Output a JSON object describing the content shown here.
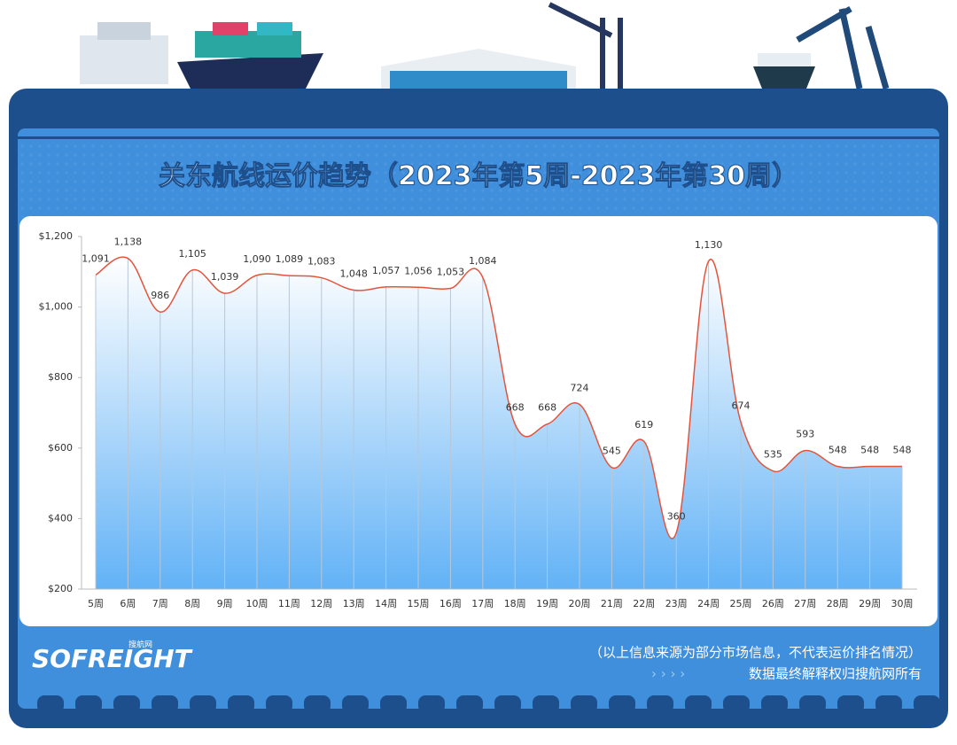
{
  "chart_data": {
    "type": "line",
    "title": "关东航线运价趋势（2023年第5周-2023年第30周）",
    "categories": [
      "5周",
      "6周",
      "7周",
      "8周",
      "9周",
      "10周",
      "11周",
      "12周",
      "13周",
      "14周",
      "15周",
      "16周",
      "17周",
      "18周",
      "19周",
      "20周",
      "21周",
      "22周",
      "23周",
      "24周",
      "25周",
      "26周",
      "27周",
      "28周",
      "29周",
      "30周"
    ],
    "values": [
      1091,
      1138,
      986,
      1105,
      1039,
      1090,
      1089,
      1083,
      1048,
      1057,
      1056,
      1053,
      1084,
      668,
      668,
      724,
      545,
      619,
      360,
      1130,
      674,
      535,
      593,
      548,
      548,
      548
    ],
    "value_labels": [
      "1,091",
      "1,138",
      "986",
      "1,105",
      "1,039",
      "1,090",
      "1,089",
      "1,083",
      "1,048",
      "1,057",
      "1,056",
      "1,053",
      "1,084",
      "668",
      "668",
      "724",
      "545",
      "619",
      "360",
      "1,130",
      "674",
      "535",
      "593",
      "548",
      "548",
      "548"
    ],
    "color": "#e4543c",
    "ylim": [
      200,
      1200
    ],
    "yticks": [
      {
        "value": 200,
        "label": "$200"
      },
      {
        "value": 400,
        "label": "$400"
      },
      {
        "value": 600,
        "label": "$600"
      },
      {
        "value": 800,
        "label": "$800"
      },
      {
        "value": 1000,
        "label": "$1,000"
      },
      {
        "value": 1200,
        "label": "$1,200"
      }
    ],
    "grid": false
  },
  "footer": {
    "logo": "SOFREIGHT",
    "logo_sub": "搜航网",
    "note": "（以上信息来源为部分市场信息，不代表运价排名情况）",
    "rights": "数据最终解释权归搜航网所有"
  }
}
